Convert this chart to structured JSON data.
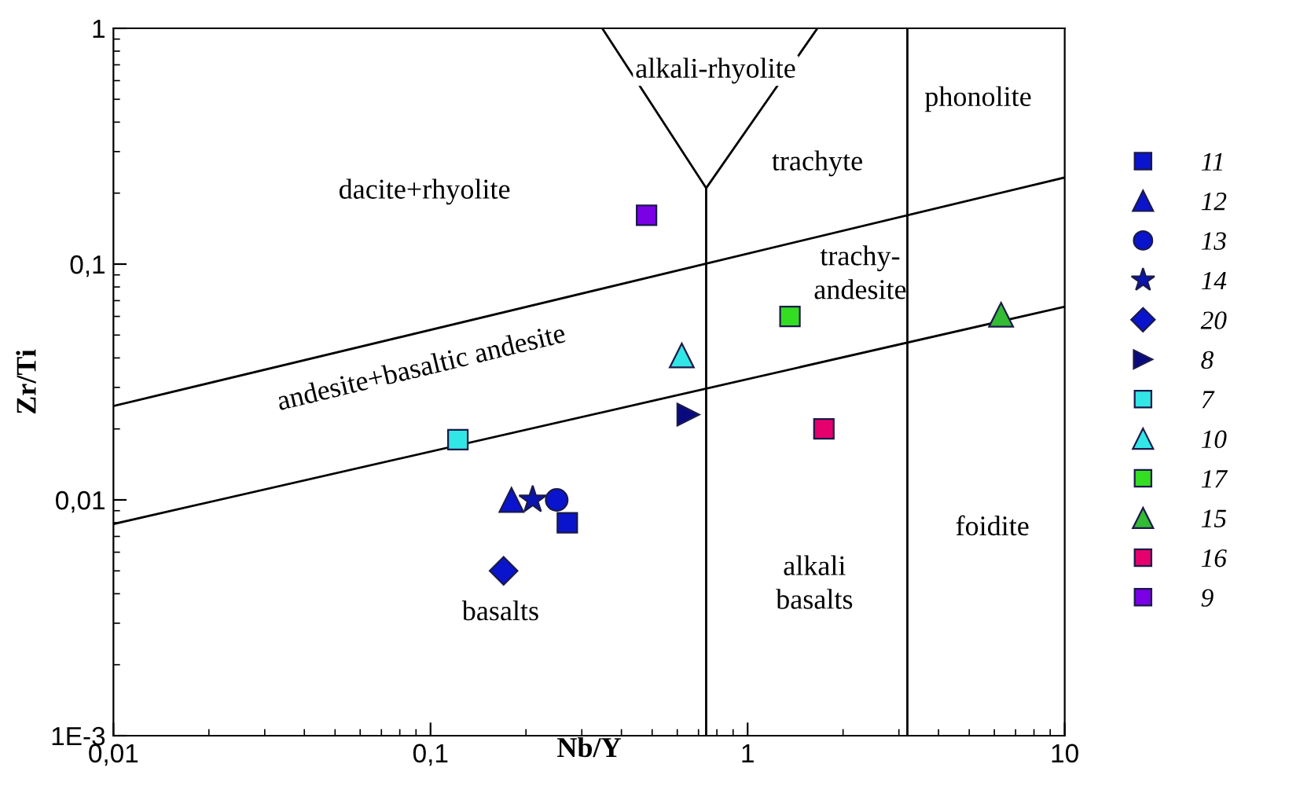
{
  "chart_data": {
    "type": "scatter",
    "xlabel": "Nb/Y",
    "ylabel": "Zr/Ti",
    "log": "xy",
    "xlim": [
      0.01,
      10
    ],
    "ylim": [
      0.001,
      1
    ],
    "xticks": [
      {
        "value": 0.01,
        "label": "0,01"
      },
      {
        "value": 0.1,
        "label": "0,1"
      },
      1,
      10
    ],
    "yticks": [
      {
        "value": 0.001,
        "label": "1E-3"
      },
      {
        "value": 0.01,
        "label": "0,01"
      },
      {
        "value": 0.1,
        "label": "0,1"
      },
      1
    ],
    "grid": false,
    "legend": "right",
    "series": [
      {
        "type": "line",
        "color": "#000000",
        "marker": "none",
        "x": [
          0.01,
          10
        ],
        "values": [
          0.025,
          0.233
        ]
      },
      {
        "type": "line",
        "color": "#000000",
        "marker": "none",
        "x": [
          0.01,
          10
        ],
        "values": [
          0.0079,
          0.066
        ]
      },
      {
        "type": "line",
        "color": "#000000",
        "marker": "none",
        "x": [
          0.74,
          0.74
        ],
        "values": [
          0.001,
          0.21
        ]
      },
      {
        "type": "line",
        "color": "#000000",
        "marker": "none",
        "x": [
          0.348,
          0.74,
          1.66
        ],
        "values": [
          1,
          0.21,
          1
        ]
      },
      {
        "type": "line",
        "color": "#000000",
        "marker": "none",
        "x": [
          3.19,
          3.19
        ],
        "values": [
          0.001,
          1
        ]
      },
      {
        "name": "11",
        "color": "#0a14cc",
        "marker": "square",
        "x": [
          0.27
        ],
        "values": [
          0.008
        ]
      },
      {
        "name": "12",
        "color": "#0a14cc",
        "marker": "triangle",
        "x": [
          0.18
        ],
        "values": [
          0.01
        ]
      },
      {
        "name": "13",
        "color": "#0a14cc",
        "marker": "circle",
        "x": [
          0.25
        ],
        "values": [
          0.01
        ]
      },
      {
        "name": "14",
        "color": "#0a14b0",
        "marker": "star",
        "x": [
          0.21
        ],
        "values": [
          0.01
        ]
      },
      {
        "name": "20",
        "color": "#0a14cc",
        "marker": "diamond",
        "x": [
          0.17
        ],
        "values": [
          0.005
        ]
      },
      {
        "name": "8",
        "color": "#0a0a80",
        "marker": "triangle_right",
        "x": [
          0.65
        ],
        "values": [
          0.023
        ]
      },
      {
        "name": "7",
        "color": "#33e6e6",
        "marker": "square",
        "x": [
          0.122
        ],
        "values": [
          0.018
        ]
      },
      {
        "name": "10",
        "color": "#33e6e6",
        "marker": "triangle",
        "x": [
          0.62
        ],
        "values": [
          0.041
        ]
      },
      {
        "name": "17",
        "color": "#33dd22",
        "marker": "square",
        "x": [
          1.36
        ],
        "values": [
          0.06
        ]
      },
      {
        "name": "15",
        "color": "#33bb33",
        "marker": "triangle",
        "x": [
          6.3
        ],
        "values": [
          0.061
        ]
      },
      {
        "name": "16",
        "color": "#e6006e",
        "marker": "square",
        "x": [
          1.74
        ],
        "values": [
          0.02
        ]
      },
      {
        "name": "9",
        "color": "#7a00e6",
        "marker": "square",
        "x": [
          0.48
        ],
        "values": [
          0.161
        ]
      }
    ],
    "annotations": [
      "dacite+rhyolite",
      "alkali-rhyolite",
      "phonolite",
      "trachyte",
      "trachy-\nandesite",
      "andesite+basaltic andesite",
      "basalts",
      "alkali\nbasalts",
      "foidite"
    ]
  }
}
